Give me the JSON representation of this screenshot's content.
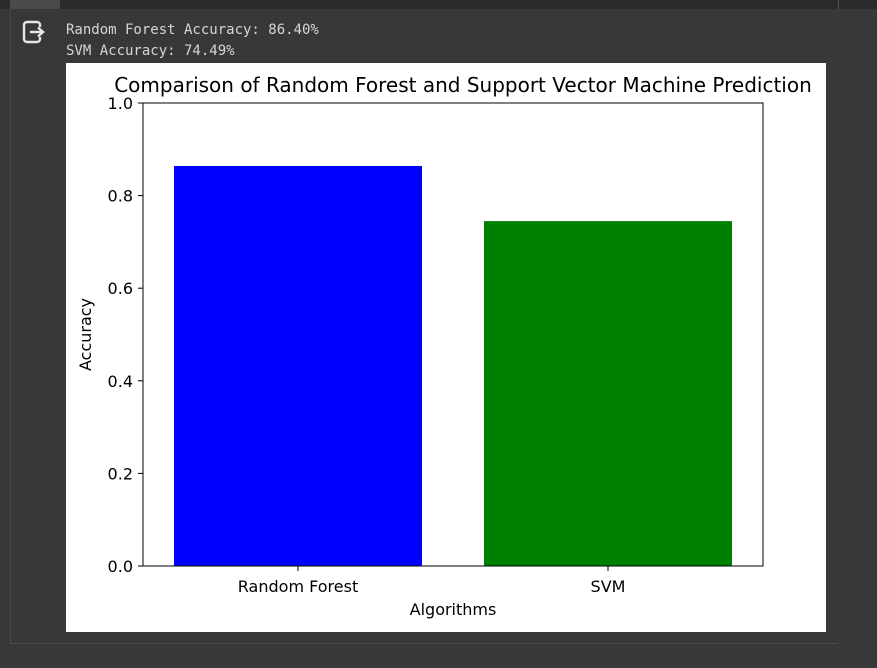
{
  "output": {
    "icon": "output-redirect-icon",
    "lines": [
      "Random Forest Accuracy: 86.40%",
      "SVM Accuracy: 74.49%"
    ]
  },
  "chart_data": {
    "type": "bar",
    "title": "Comparison of Random Forest and Support Vector Machine Prediction",
    "xlabel": "Algorithms",
    "ylabel": "Accuracy",
    "categories": [
      "Random Forest",
      "SVM"
    ],
    "values": [
      0.864,
      0.7449
    ],
    "colors": [
      "#0000ff",
      "#008000"
    ],
    "ylim": [
      0,
      1.0
    ],
    "yticks": [
      "0.0",
      "0.2",
      "0.4",
      "0.6",
      "0.8",
      "1.0"
    ],
    "grid": false,
    "legend": "none"
  }
}
